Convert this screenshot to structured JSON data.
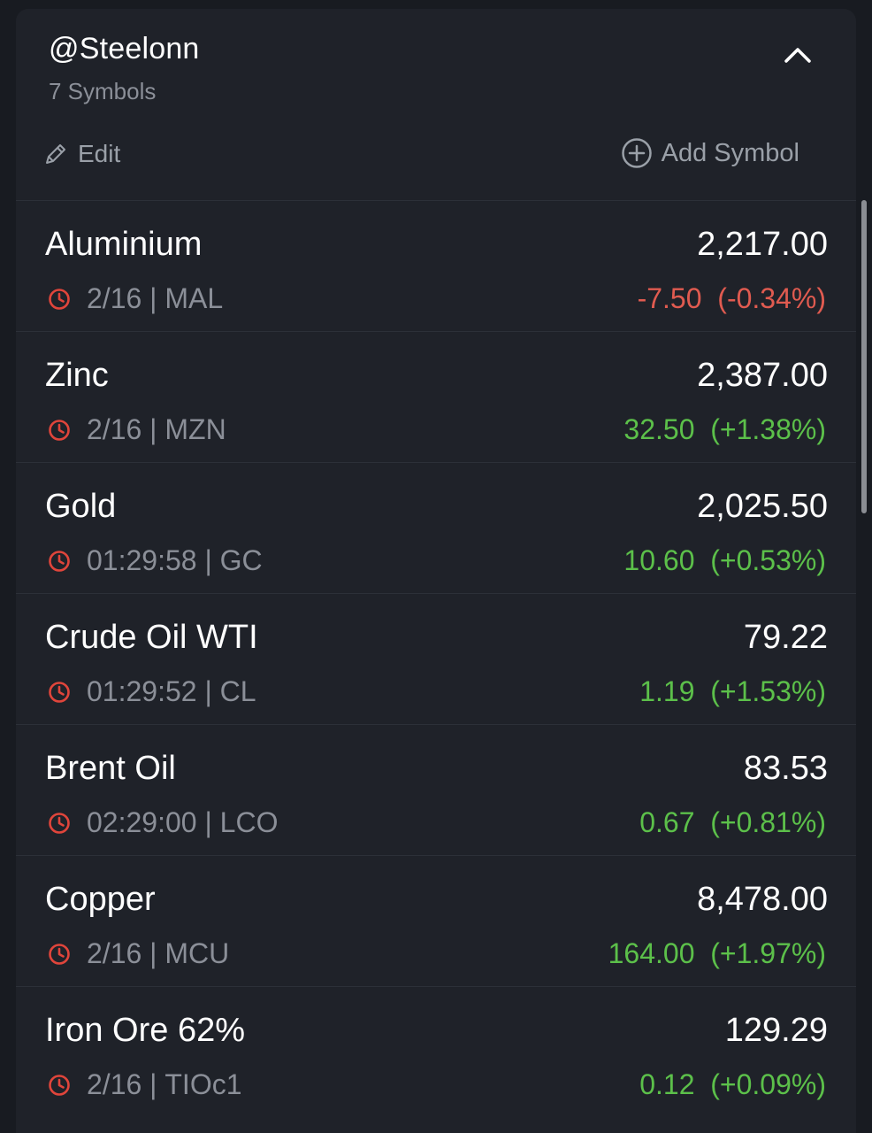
{
  "watchlist": {
    "title": "@Steelonn",
    "subtitle": "7 Symbols",
    "edit_label": "Edit",
    "add_label": "Add Symbol"
  },
  "colors": {
    "up": "#5cc04a",
    "down": "#e05b50",
    "clock": "#e0453b"
  },
  "symbols": [
    {
      "name": "Aluminium",
      "price": "2,217.00",
      "time": "2/16",
      "ticker": "MAL",
      "change": "-7.50",
      "pct": "(-0.34%)",
      "direction": "down"
    },
    {
      "name": "Zinc",
      "price": "2,387.00",
      "time": "2/16",
      "ticker": "MZN",
      "change": "32.50",
      "pct": "(+1.38%)",
      "direction": "up"
    },
    {
      "name": "Gold",
      "price": "2,025.50",
      "time": "01:29:58",
      "ticker": "GC",
      "change": "10.60",
      "pct": "(+0.53%)",
      "direction": "up"
    },
    {
      "name": "Crude Oil WTI",
      "price": "79.22",
      "time": "01:29:52",
      "ticker": "CL",
      "change": "1.19",
      "pct": "(+1.53%)",
      "direction": "up"
    },
    {
      "name": "Brent Oil",
      "price": "83.53",
      "time": "02:29:00",
      "ticker": "LCO",
      "change": "0.67",
      "pct": "(+0.81%)",
      "direction": "up"
    },
    {
      "name": "Copper",
      "price": "8,478.00",
      "time": "2/16",
      "ticker": "MCU",
      "change": "164.00",
      "pct": "(+1.97%)",
      "direction": "up"
    },
    {
      "name": "Iron Ore 62%",
      "price": "129.29",
      "time": "2/16",
      "ticker": "TIOc1",
      "change": "0.12",
      "pct": "(+0.09%)",
      "direction": "up"
    }
  ]
}
